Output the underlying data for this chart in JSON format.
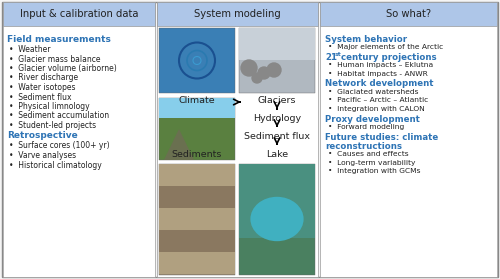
{
  "bg_color": "#f5f5f5",
  "header_bg": "#aec6e8",
  "blue": "#2E74B5",
  "black": "#222222",
  "col1_header": "Input & calibration data",
  "col2_header": "System modeling",
  "col3_header": "So what?",
  "field_measurements": [
    "Weather",
    "Glacier mass balance",
    "Glacier volume (airborne)",
    "River discharge",
    "Water isotopes",
    "Sediment flux",
    "Physical limnology",
    "Sediment accumulation",
    "Student-led projects"
  ],
  "retrospective": [
    "Surface cores (100+ yr)",
    "Varve analyses",
    "Historical climatology"
  ],
  "system_behavior_items": [
    "Major elements of the Arctic"
  ],
  "century_items": [
    "Human impacts – Eklutna",
    "Habitat impacts - ANWR"
  ],
  "network_items": [
    "Glaciated watersheds",
    "Pacific – Arctic – Atlantic",
    "Integration with CALON"
  ],
  "proxy_items": [
    "Forward modeling"
  ],
  "future_items": [
    "Causes and effects",
    "Long-term variability",
    "Integration with GCMs"
  ],
  "img_colors": {
    "top_left": "#3a7fb5",
    "top_right": "#b0b8c0",
    "mid_left": "#5a8040",
    "mid_right": "#909090",
    "bot_left": "#9a8a70",
    "bot_right": "#4a8060"
  }
}
